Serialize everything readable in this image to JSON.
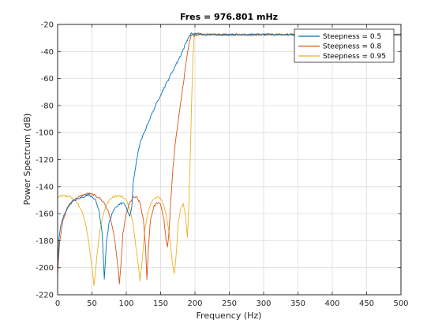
{
  "chart_data": {
    "type": "line",
    "title": "Fres = 976.801 mHz",
    "xlabel": "Frequency (Hz)",
    "ylabel": "Power Spectrum (dB)",
    "xlim": [
      0,
      500
    ],
    "ylim": [
      -220,
      -20
    ],
    "xticks": [
      "0",
      "50",
      "100",
      "150",
      "200",
      "250",
      "300",
      "350",
      "400",
      "450",
      "500"
    ],
    "yticks": [
      "-20",
      "-40",
      "-60",
      "-80",
      "-100",
      "-120",
      "-140",
      "-160",
      "-180",
      "-200",
      "-220"
    ],
    "grid": true,
    "legend_position": "top-right",
    "series": [
      {
        "name": "Steepness = 0.5",
        "color": "#0072bd",
        "points": [
          [
            0,
            -200
          ],
          [
            2,
            -178
          ],
          [
            5,
            -168
          ],
          [
            10,
            -160
          ],
          [
            15,
            -155
          ],
          [
            20,
            -152
          ],
          [
            25,
            -150
          ],
          [
            30,
            -149
          ],
          [
            35,
            -148
          ],
          [
            40,
            -147
          ],
          [
            45,
            -146
          ],
          [
            50,
            -147
          ],
          [
            55,
            -150
          ],
          [
            60,
            -157
          ],
          [
            65,
            -175
          ],
          [
            68,
            -208
          ],
          [
            71,
            -182
          ],
          [
            75,
            -167
          ],
          [
            80,
            -159
          ],
          [
            85,
            -155
          ],
          [
            90,
            -153
          ],
          [
            95,
            -152
          ],
          [
            100,
            -155
          ],
          [
            103,
            -160
          ],
          [
            105,
            -162
          ],
          [
            108,
            -155
          ],
          [
            110,
            -138
          ],
          [
            115,
            -120
          ],
          [
            120,
            -108
          ],
          [
            130,
            -95
          ],
          [
            140,
            -83
          ],
          [
            150,
            -72
          ],
          [
            160,
            -62
          ],
          [
            170,
            -52
          ],
          [
            180,
            -42
          ],
          [
            185,
            -36
          ],
          [
            190,
            -30
          ],
          [
            194,
            -27
          ],
          [
            200,
            -27
          ],
          [
            210,
            -27
          ]
        ]
      },
      {
        "name": "Steepness = 0.8",
        "color": "#d95319",
        "points": [
          [
            0,
            -205
          ],
          [
            3,
            -180
          ],
          [
            8,
            -165
          ],
          [
            15,
            -155
          ],
          [
            22,
            -150
          ],
          [
            30,
            -148
          ],
          [
            38,
            -146
          ],
          [
            45,
            -145
          ],
          [
            52,
            -146
          ],
          [
            60,
            -148
          ],
          [
            68,
            -152
          ],
          [
            75,
            -160
          ],
          [
            82,
            -175
          ],
          [
            88,
            -200
          ],
          [
            90,
            -212
          ],
          [
            92,
            -200
          ],
          [
            95,
            -175
          ],
          [
            100,
            -160
          ],
          [
            105,
            -152
          ],
          [
            110,
            -148
          ],
          [
            115,
            -148
          ],
          [
            120,
            -152
          ],
          [
            125,
            -165
          ],
          [
            128,
            -185
          ],
          [
            130,
            -208
          ],
          [
            132,
            -188
          ],
          [
            135,
            -165
          ],
          [
            140,
            -155
          ],
          [
            145,
            -152
          ],
          [
            150,
            -153
          ],
          [
            155,
            -165
          ],
          [
            158,
            -180
          ],
          [
            160,
            -185
          ],
          [
            162,
            -175
          ],
          [
            165,
            -150
          ],
          [
            168,
            -125
          ],
          [
            172,
            -105
          ],
          [
            176,
            -90
          ],
          [
            180,
            -75
          ],
          [
            184,
            -60
          ],
          [
            188,
            -45
          ],
          [
            192,
            -33
          ],
          [
            195,
            -28
          ],
          [
            200,
            -28
          ],
          [
            210,
            -27
          ]
        ]
      },
      {
        "name": "Steepness = 0.95",
        "color": "#edb120",
        "points": [
          [
            0,
            -148
          ],
          [
            5,
            -147
          ],
          [
            10,
            -147
          ],
          [
            15,
            -147
          ],
          [
            20,
            -148
          ],
          [
            25,
            -150
          ],
          [
            30,
            -153
          ],
          [
            35,
            -158
          ],
          [
            40,
            -166
          ],
          [
            45,
            -180
          ],
          [
            50,
            -200
          ],
          [
            53,
            -213
          ],
          [
            56,
            -198
          ],
          [
            60,
            -178
          ],
          [
            65,
            -163
          ],
          [
            70,
            -155
          ],
          [
            75,
            -150
          ],
          [
            80,
            -148
          ],
          [
            85,
            -147
          ],
          [
            90,
            -147
          ],
          [
            95,
            -148
          ],
          [
            100,
            -150
          ],
          [
            105,
            -156
          ],
          [
            110,
            -168
          ],
          [
            115,
            -188
          ],
          [
            120,
            -210
          ],
          [
            123,
            -195
          ],
          [
            127,
            -172
          ],
          [
            132,
            -158
          ],
          [
            137,
            -151
          ],
          [
            142,
            -148
          ],
          [
            147,
            -148
          ],
          [
            152,
            -150
          ],
          [
            157,
            -158
          ],
          [
            162,
            -172
          ],
          [
            167,
            -196
          ],
          [
            170,
            -205
          ],
          [
            173,
            -188
          ],
          [
            176,
            -165
          ],
          [
            180,
            -155
          ],
          [
            183,
            -153
          ],
          [
            186,
            -160
          ],
          [
            189,
            -178
          ],
          [
            191,
            -155
          ],
          [
            193,
            -120
          ],
          [
            195,
            -80
          ],
          [
            197,
            -45
          ],
          [
            199,
            -28
          ],
          [
            202,
            -27
          ],
          [
            210,
            -27
          ]
        ]
      }
    ],
    "flat_level": -27.5
  }
}
